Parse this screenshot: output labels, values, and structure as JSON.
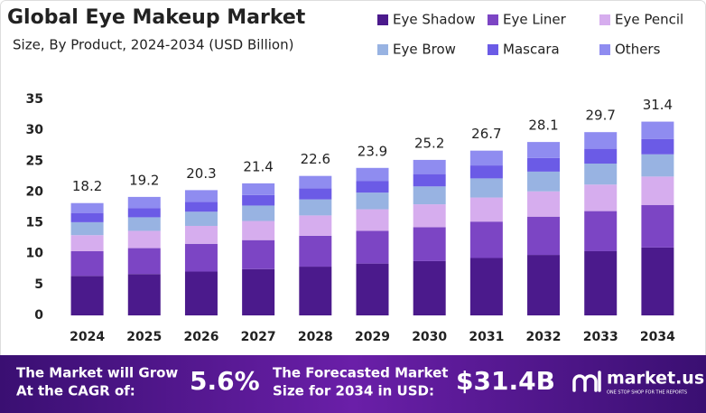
{
  "chart_data": {
    "type": "stacked_bar",
    "title": "Global Eye Makeup Market",
    "subtitle": "Size, By Product, 2024-2034 (USD Billion)",
    "categories": [
      "2024",
      "2025",
      "2026",
      "2027",
      "2028",
      "2029",
      "2030",
      "2031",
      "2032",
      "2033",
      "2034"
    ],
    "series": [
      {
        "name": "Eye Shadow",
        "color": "#4b1a8c",
        "values": [
          6.4,
          6.7,
          7.1,
          7.5,
          7.9,
          8.4,
          8.8,
          9.3,
          9.8,
          10.4,
          11.0
        ]
      },
      {
        "name": "Eye Liner",
        "color": "#7c45c4",
        "values": [
          4.0,
          4.2,
          4.5,
          4.7,
          5.0,
          5.3,
          5.5,
          5.9,
          6.2,
          6.5,
          6.9
        ]
      },
      {
        "name": "Eye Pencil",
        "color": "#d6adee",
        "values": [
          2.6,
          2.8,
          2.9,
          3.1,
          3.3,
          3.5,
          3.7,
          3.9,
          4.1,
          4.3,
          4.6
        ]
      },
      {
        "name": "Eye Brow",
        "color": "#98b3e2",
        "values": [
          2.1,
          2.2,
          2.3,
          2.5,
          2.6,
          2.7,
          2.9,
          3.1,
          3.2,
          3.4,
          3.6
        ]
      },
      {
        "name": "Mascara",
        "color": "#6b5be6",
        "values": [
          1.5,
          1.5,
          1.6,
          1.7,
          1.8,
          1.9,
          2.0,
          2.1,
          2.2,
          2.4,
          2.5
        ]
      },
      {
        "name": "Others",
        "color": "#8f8cf0",
        "values": [
          1.6,
          1.8,
          1.9,
          1.9,
          2.0,
          2.1,
          2.3,
          2.4,
          2.6,
          2.7,
          2.8
        ]
      }
    ],
    "totals": [
      18.2,
      19.2,
      20.3,
      21.4,
      22.6,
      23.9,
      25.2,
      26.7,
      28.1,
      29.7,
      31.4
    ],
    "ylim": [
      0,
      35
    ],
    "yticks": [
      0,
      5,
      10,
      15,
      20,
      25,
      30,
      35
    ],
    "grid": false
  },
  "footer": {
    "cagr_text": [
      "The Market will Grow",
      "At the CAGR of:"
    ],
    "cagr_value": "5.6%",
    "forecast_text": [
      "The Forecasted Market",
      "Size for 2034 in USD:"
    ],
    "forecast_value": "$31.4B",
    "brand": "market.us",
    "tagline": "ONE STOP SHOP FOR THE REPORTS"
  }
}
